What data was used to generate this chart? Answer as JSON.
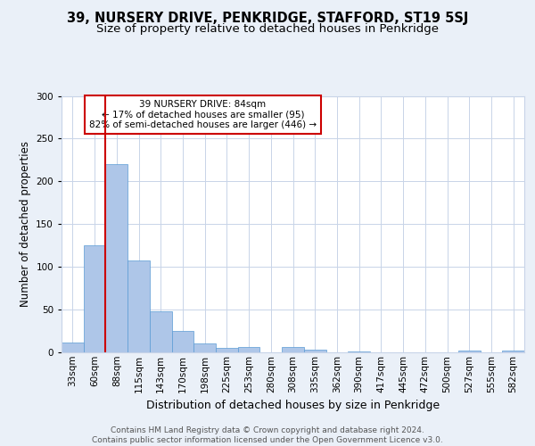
{
  "title": "39, NURSERY DRIVE, PENKRIDGE, STAFFORD, ST19 5SJ",
  "subtitle": "Size of property relative to detached houses in Penkridge",
  "xlabel": "Distribution of detached houses by size in Penkridge",
  "ylabel": "Number of detached properties",
  "categories": [
    "33sqm",
    "60sqm",
    "88sqm",
    "115sqm",
    "143sqm",
    "170sqm",
    "198sqm",
    "225sqm",
    "253sqm",
    "280sqm",
    "308sqm",
    "335sqm",
    "362sqm",
    "390sqm",
    "417sqm",
    "445sqm",
    "472sqm",
    "500sqm",
    "527sqm",
    "555sqm",
    "582sqm"
  ],
  "values": [
    12,
    125,
    220,
    108,
    48,
    25,
    10,
    5,
    6,
    0,
    6,
    3,
    0,
    1,
    0,
    0,
    0,
    0,
    2,
    0,
    2
  ],
  "bar_color": "#aec6e8",
  "bar_edge_color": "#5a9bd4",
  "vline_x_index": 2,
  "vline_color": "#cc0000",
  "annotation_text": "39 NURSERY DRIVE: 84sqm\n← 17% of detached houses are smaller (95)\n82% of semi-detached houses are larger (446) →",
  "annotation_box_color": "#ffffff",
  "annotation_box_edge": "#cc0000",
  "bg_color": "#eaf0f8",
  "plot_bg_color": "#ffffff",
  "grid_color": "#c8d4e8",
  "footer": "Contains HM Land Registry data © Crown copyright and database right 2024.\nContains public sector information licensed under the Open Government Licence v3.0.",
  "ylim": [
    0,
    300
  ],
  "title_fontsize": 10.5,
  "subtitle_fontsize": 9.5,
  "xlabel_fontsize": 9,
  "ylabel_fontsize": 8.5,
  "tick_fontsize": 7.5,
  "annotation_fontsize": 7.5,
  "footer_fontsize": 6.5
}
